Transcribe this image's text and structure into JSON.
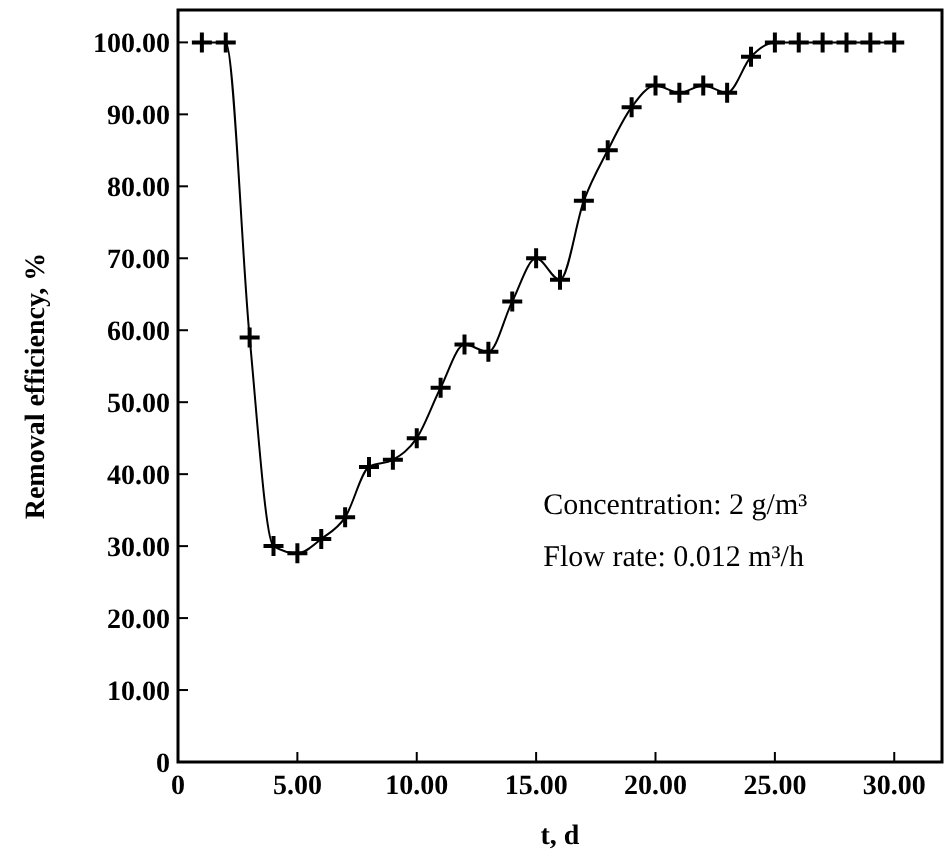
{
  "chart_data": {
    "type": "line",
    "xlabel": "t, d",
    "ylabel": "Removal efficiency, %",
    "x": [
      1,
      2,
      3,
      4,
      5,
      6,
      7,
      8,
      9,
      10,
      11,
      12,
      13,
      14,
      15,
      16,
      17,
      18,
      19,
      20,
      21,
      22,
      23,
      24,
      25,
      26,
      27,
      28,
      29,
      30
    ],
    "series": [
      {
        "color": "#000000",
        "values": [
          100,
          100,
          59,
          30,
          29,
          31,
          34,
          41,
          42,
          45,
          52,
          58,
          57,
          64,
          70,
          67,
          78,
          85,
          91,
          94,
          93,
          94,
          93,
          98,
          100,
          100,
          100,
          100,
          100,
          100
        ]
      }
    ],
    "marker": "cross",
    "xlim": [
      0,
      32
    ],
    "ylim": [
      0,
      104.5
    ],
    "xticks": [
      0,
      {
        "value": 5,
        "label": "5.00"
      },
      {
        "value": 10,
        "label": "10.00"
      },
      {
        "value": 15,
        "label": "15.00"
      },
      {
        "value": 20,
        "label": "20.00"
      },
      {
        "value": 25,
        "label": "25.00"
      },
      {
        "value": 30,
        "label": "30.00"
      }
    ],
    "yticks": [
      0,
      {
        "value": 10,
        "label": "10.00"
      },
      {
        "value": 20,
        "label": "20.00"
      },
      {
        "value": 30,
        "label": "30.00"
      },
      {
        "value": 40,
        "label": "40.00"
      },
      {
        "value": 50,
        "label": "50.00"
      },
      {
        "value": 60,
        "label": "60.00"
      },
      {
        "value": 70,
        "label": "70.00"
      },
      {
        "value": 80,
        "label": "80.00"
      },
      {
        "value": 90,
        "label": "90.00"
      },
      {
        "value": 100,
        "label": "100.00"
      }
    ],
    "annotations": [
      "Concentration: 2 g/m³",
      "Flow rate: 0.012 m³/h"
    ]
  }
}
